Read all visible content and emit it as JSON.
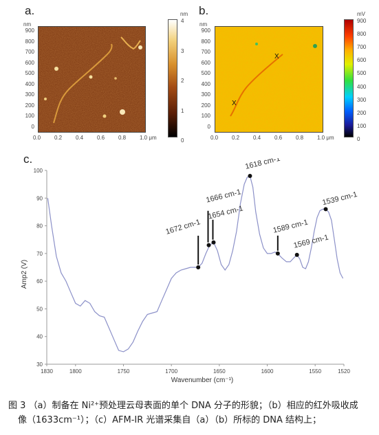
{
  "panel_a": {
    "label": "a.",
    "y_unit": "nm",
    "y_ticks": [
      "900",
      "800",
      "700",
      "600",
      "500",
      "400",
      "300",
      "200",
      "100",
      "0"
    ],
    "x_ticks": [
      "0.0",
      "0.2",
      "0.4",
      "0.6",
      "0.8",
      "1.0 μm"
    ],
    "colorbar_unit": "nm",
    "colorbar_ticks": [
      "4",
      "3",
      "2",
      "1",
      "0"
    ]
  },
  "panel_b": {
    "label": "b.",
    "y_unit": "nm",
    "y_ticks": [
      "900",
      "800",
      "700",
      "600",
      "500",
      "400",
      "300",
      "200",
      "100",
      "0"
    ],
    "x_ticks": [
      "0.0",
      "0.2",
      "0.4",
      "0.6",
      "0.8",
      "1.0 μm"
    ],
    "colorbar_unit": "mV",
    "colorbar_ticks": [
      "900",
      "800",
      "700",
      "600",
      "500",
      "400",
      "300",
      "200",
      "100",
      "0"
    ],
    "markers": [
      "X",
      "X"
    ]
  },
  "panel_c": {
    "label": "c."
  },
  "chart_data": {
    "type": "line",
    "xlabel": "Wavenumber (cm⁻¹)",
    "ylabel": "Amp2 (V)",
    "xlim": [
      1830,
      1520
    ],
    "ylim": [
      30,
      100
    ],
    "x_ticks": [
      1830,
      1800,
      1750,
      1700,
      1650,
      1600,
      1550,
      1520
    ],
    "y_ticks": [
      30,
      40,
      50,
      60,
      70,
      80,
      90,
      100
    ],
    "series": [
      {
        "line_color": "#8b90c8",
        "x": [
          1829,
          1825,
          1820,
          1815,
          1810,
          1805,
          1800,
          1795,
          1790,
          1785,
          1780,
          1775,
          1770,
          1765,
          1760,
          1755,
          1750,
          1745,
          1740,
          1735,
          1730,
          1725,
          1720,
          1715,
          1710,
          1705,
          1700,
          1695,
          1690,
          1685,
          1680,
          1676,
          1672,
          1668,
          1664,
          1660,
          1656,
          1652,
          1648,
          1644,
          1640,
          1636,
          1632,
          1628,
          1624,
          1621,
          1618,
          1615,
          1612,
          1608,
          1604,
          1600,
          1596,
          1592,
          1589,
          1585,
          1580,
          1576,
          1572,
          1569,
          1566,
          1563,
          1560,
          1557,
          1554,
          1551,
          1548,
          1545,
          1542,
          1539,
          1536,
          1533,
          1530,
          1527,
          1524,
          1521
        ],
        "y": [
          90,
          80,
          69,
          63,
          60,
          56,
          52,
          51,
          53,
          52,
          49,
          47.5,
          47,
          43,
          39,
          35,
          34.5,
          35.5,
          38,
          42,
          45.5,
          48,
          48.5,
          49,
          53,
          57,
          61,
          63,
          64,
          64.5,
          65,
          65,
          65,
          66.5,
          70,
          73,
          74,
          71,
          66,
          64,
          66,
          71,
          78,
          88,
          95,
          97.5,
          98,
          94,
          85,
          77,
          72,
          70,
          70,
          70.5,
          70,
          68.5,
          67,
          67,
          68.5,
          69.5,
          68,
          65,
          64.5,
          67,
          72,
          78,
          83,
          85.5,
          86,
          86,
          85,
          82,
          75,
          68,
          63,
          61
        ]
      }
    ],
    "annotations": [
      {
        "label": "1672 cm-1",
        "x": 1672,
        "y": 65
      },
      {
        "label": "1666 cm-1",
        "x": 1661,
        "y": 73
      },
      {
        "label": "1654 cm-1",
        "x": 1656,
        "y": 74
      },
      {
        "label": "1618 cm-1",
        "x": 1618,
        "y": 98
      },
      {
        "label": "1589 cm-1",
        "x": 1589,
        "y": 70
      },
      {
        "label": "1569 cm-1",
        "x": 1569,
        "y": 69.5
      },
      {
        "label": "1539 cm-1",
        "x": 1539,
        "y": 86
      }
    ]
  },
  "caption": {
    "line1": "图 3 （a）制备在 Ni²⁺预处理云母表面的单个 DNA 分子的形貌；（b）相应的红外吸收成",
    "line2": "像（1633cm⁻¹）；（c）AFM-IR 光谱采集自（a）（b）所标的 DNA 结构上；"
  }
}
